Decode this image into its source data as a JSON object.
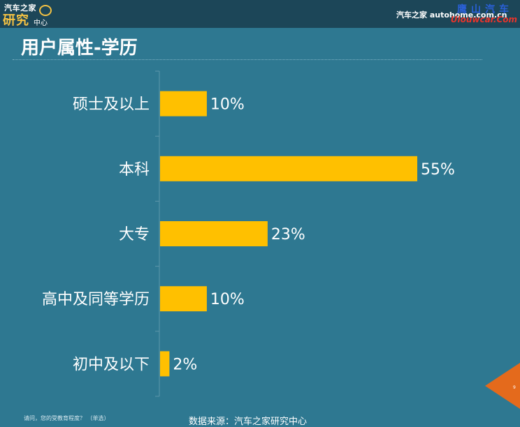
{
  "header": {
    "logo_top": "汽车之家",
    "logo_main": "研究",
    "logo_sub": "中心",
    "brand": "汽车之家 autohome.com.cn",
    "watermark_top": "鹰山汽车",
    "watermark_bottom": "Ulouwcar.Com"
  },
  "title": "用户属性-学历",
  "footer": {
    "note": "请问，您的受教育程度？ （单选）",
    "source": "数据来源：汽车之家研究中心",
    "page_number": "9"
  },
  "colors": {
    "background": "#2e7891",
    "bar": "#ffc000",
    "accent": "#e46a1c"
  },
  "chart_data": {
    "type": "bar",
    "orientation": "horizontal",
    "categories": [
      "硕士及以上",
      "本科",
      "大专",
      "高中及同等学历",
      "初中及以下"
    ],
    "values": [
      10,
      55,
      23,
      10,
      2
    ],
    "value_labels": [
      "10%",
      "55%",
      "23%",
      "10%",
      "2%"
    ],
    "unit": "%",
    "title": "用户属性-学历",
    "xlim": [
      0,
      55
    ],
    "grid": false,
    "legend": "none"
  }
}
